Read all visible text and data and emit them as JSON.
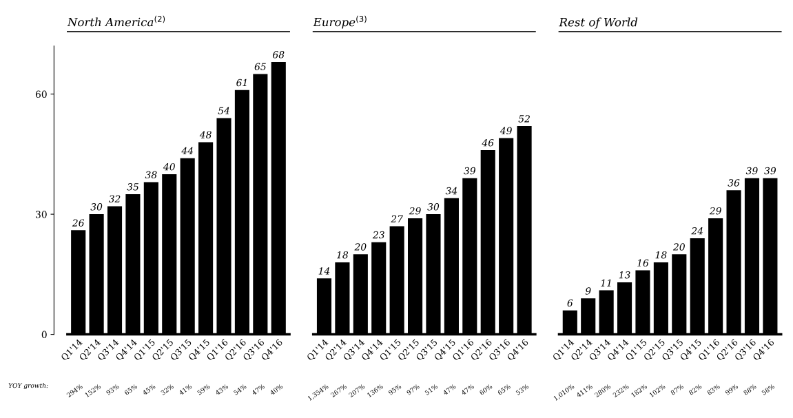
{
  "chart_data": [
    {
      "type": "bar",
      "title": "North America$^{(2)}$",
      "categories": [
        "Q1'14",
        "Q2'14",
        "Q3'14",
        "Q4'14",
        "Q1'15",
        "Q2'15",
        "Q3'15",
        "Q4'15",
        "Q1'16",
        "Q2'16",
        "Q3'16",
        "Q4'16"
      ],
      "values": [
        26,
        30,
        32,
        35,
        38,
        40,
        44,
        48,
        54,
        61,
        65,
        68
      ],
      "color": "#000000",
      "data_labels": true,
      "ylim": [
        0,
        72
      ],
      "yticks": [
        0,
        30,
        60
      ],
      "grid": false,
      "legend": false,
      "annotations": [
        "YOY growth:",
        "294%",
        "152%",
        "93%",
        "65%",
        "45%",
        "32%",
        "41%",
        "59%",
        "43%",
        "54%",
        "47%",
        "40%"
      ]
    },
    {
      "type": "bar",
      "title": "Europe$^{(3)}$",
      "categories": [
        "Q1'14",
        "Q2'14",
        "Q3'14",
        "Q4'14",
        "Q1'15",
        "Q2'15",
        "Q3'15",
        "Q4'15",
        "Q1'16",
        "Q2'16",
        "Q3'16",
        "Q4'16"
      ],
      "values": [
        14,
        18,
        20,
        23,
        27,
        29,
        30,
        34,
        39,
        46,
        49,
        52
      ],
      "color": "#000000",
      "data_labels": true,
      "tick_labels": "x",
      "grid": false,
      "legend": false,
      "annotations": [
        "1,354%",
        "267%",
        "207%",
        "136%",
        "95%",
        "97%",
        "51%",
        "47%",
        "47%",
        "60%",
        "65%",
        "53%"
      ]
    },
    {
      "type": "bar",
      "title": "Rest of World",
      "categories": [
        "Q1'14",
        "Q2'14",
        "Q3'14",
        "Q4'14",
        "Q1'15",
        "Q2'15",
        "Q3'15",
        "Q4'15",
        "Q1'16",
        "Q2'16",
        "Q3'16",
        "Q4'16"
      ],
      "values": [
        6,
        9,
        11,
        13,
        16,
        18,
        20,
        24,
        29,
        36,
        39,
        39
      ],
      "color": "#000000",
      "data_labels": true,
      "tick_labels": "x",
      "grid": false,
      "legend": false,
      "annotations": [
        "1,010%",
        "411%",
        "280%",
        "232%",
        "182%",
        "102%",
        "87%",
        "82%",
        "83%",
        "99%",
        "88%",
        "58%"
      ]
    }
  ]
}
